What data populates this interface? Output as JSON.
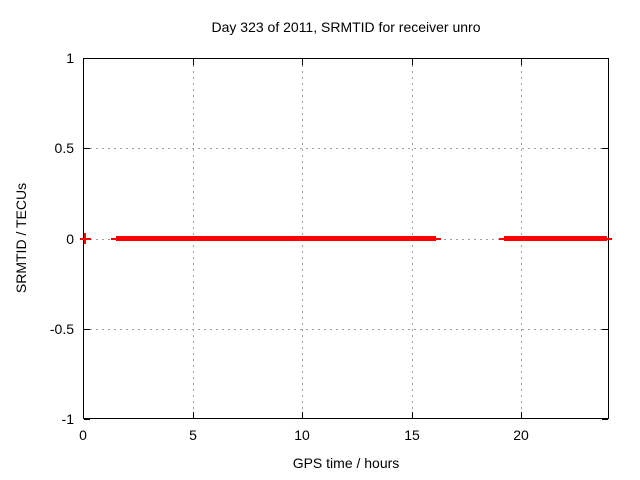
{
  "chart_data": {
    "type": "line",
    "title": "Day 323 of 2011, SRMTID for receiver unro",
    "xlabel": "GPS time / hours",
    "ylabel": "SRMTID / TECUs",
    "xlim": [
      0,
      24
    ],
    "ylim": [
      -1,
      1
    ],
    "xticks": [
      0,
      5,
      10,
      15,
      20
    ],
    "yticks": [
      1,
      0.5,
      0,
      -0.5,
      -1
    ],
    "grid": true,
    "legend_position": "none",
    "series": [
      {
        "name": "SRMTID",
        "color": "#ff0000",
        "style": "thick horizontal line with plus point markers",
        "value_tecus": 0,
        "segments_hours": [
          [
            1.5,
            16.1
          ],
          [
            19.2,
            23.9
          ]
        ],
        "isolated_points_hours": [
          0.1
        ],
        "gaps_hours": [
          [
            0.1,
            1.5
          ],
          [
            16.1,
            19.2
          ]
        ]
      }
    ],
    "colors": {
      "line": "#ff0000",
      "grid": "#a0a0a0",
      "frame": "#000000",
      "background": "#ffffff",
      "text": "#000000"
    }
  }
}
